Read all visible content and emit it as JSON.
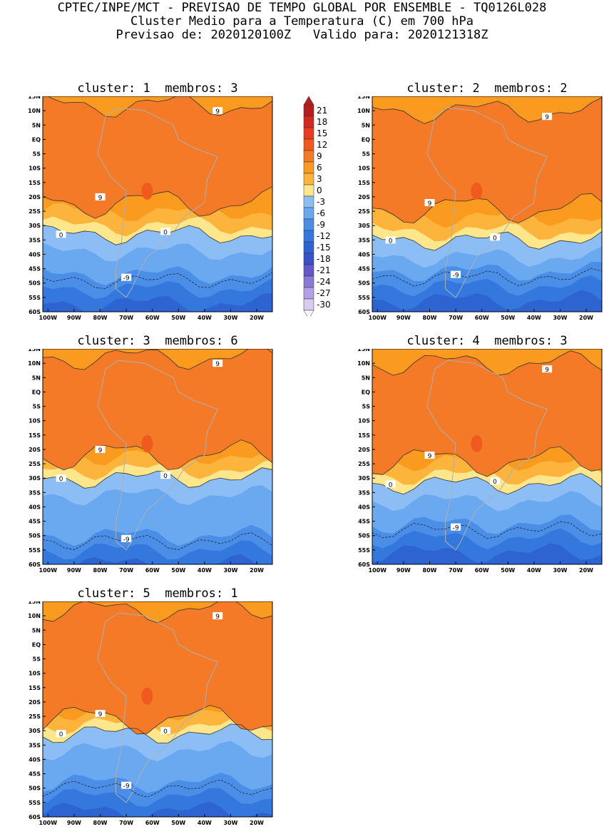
{
  "header": {
    "line1": "CPTEC/INPE/MCT - PREVISAO DE TEMPO GLOBAL POR ENSEMBLE - TQ0126L028",
    "line2": "Cluster Medio para a Temperatura (C) em 700 hPa",
    "line3": "Previsao de: 2020120100Z   Valido para: 2020121318Z"
  },
  "lat_labels": [
    "15N",
    "10N",
    "5N",
    "EQ",
    "5S",
    "10S",
    "15S",
    "20S",
    "25S",
    "30S",
    "35S",
    "40S",
    "45S",
    "50S",
    "55S",
    "60S"
  ],
  "lon_labels": [
    "100W",
    "90W",
    "80W",
    "70W",
    "60W",
    "50W",
    "40W",
    "30W",
    "20W"
  ],
  "colorbar": {
    "labels": [
      "21",
      "18",
      "15",
      "12",
      "9",
      "6",
      "3",
      "0",
      "-3",
      "-6",
      "-9",
      "-12",
      "-15",
      "-18",
      "-21",
      "-24",
      "-27",
      "-30"
    ],
    "colors": [
      "#b41e1e",
      "#d22a1e",
      "#e83c1e",
      "#f05a1e",
      "#f57a28",
      "#fa9a1e",
      "#fcb43c",
      "#fde68c",
      "#8cbef5",
      "#6aa8f0",
      "#4a8ee8",
      "#3478de",
      "#2e64d2",
      "#3c50c8",
      "#6458c8",
      "#8c78d6",
      "#b4a0e6",
      "#d8ccf2"
    ]
  },
  "contour_labels": {
    "warm": "9",
    "zero": "0",
    "cold": "-9"
  },
  "clusters": [
    {
      "title": "cluster: 1  membros: 3",
      "zero_lat": -33,
      "cold_lat": -49,
      "warm_n": 12,
      "warm_s": -22
    },
    {
      "title": "cluster: 2  membros: 2",
      "zero_lat": -35,
      "cold_lat": -48,
      "warm_n": 10,
      "warm_s": -24
    },
    {
      "title": "cluster: 3  membros: 6",
      "zero_lat": -30,
      "cold_lat": -52,
      "warm_n": 12,
      "warm_s": -22
    },
    {
      "title": "cluster: 4  membros: 3",
      "zero_lat": -32,
      "cold_lat": -48,
      "warm_n": 10,
      "warm_s": -24
    },
    {
      "title": "cluster: 5  membros: 1",
      "zero_lat": -31,
      "cold_lat": -50,
      "warm_n": 12,
      "warm_s": -26
    }
  ]
}
